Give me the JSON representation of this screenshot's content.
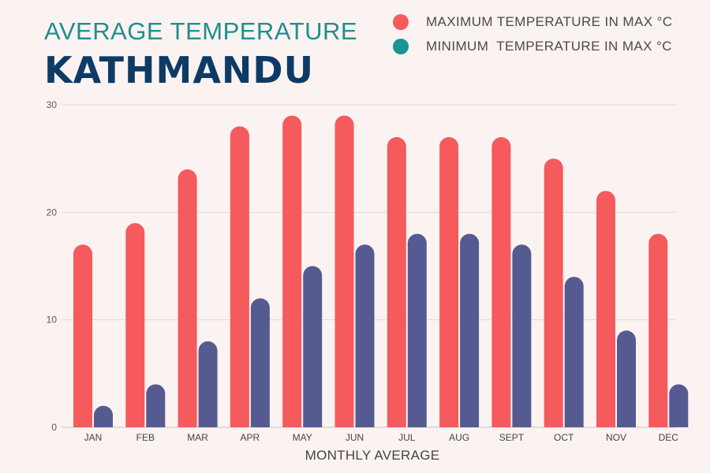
{
  "header": {
    "title": "AVERAGE TEMPERATURE",
    "subtitle": "KATHMANDU"
  },
  "colors": {
    "max": "#f55a5d",
    "min": "#555b91",
    "legend_min_dot": "#1a9494",
    "title": "#1f8f8f",
    "subtitle": "#0e3b66"
  },
  "chart_data": {
    "type": "bar",
    "categories": [
      "JAN",
      "FEB",
      "MAR",
      "APR",
      "MAY",
      "JUN",
      "JUL",
      "AUG",
      "SEPT",
      "OCT",
      "NOV",
      "DEC"
    ],
    "series": [
      {
        "name": "MAXIMUM TEMPERATURE IN MAX °C",
        "values": [
          17,
          19,
          24,
          28,
          29,
          29,
          27,
          27,
          27,
          25,
          22,
          18
        ]
      },
      {
        "name": "MINIMUM  TEMPERATURE IN MAX °C",
        "values": [
          2,
          4,
          8,
          12,
          15,
          17,
          18,
          18,
          17,
          14,
          9,
          4
        ]
      }
    ],
    "xlabel": "MONTHLY AVERAGE",
    "ylabel": "",
    "ylim": [
      0,
      30
    ],
    "yticks": [
      "0",
      "10",
      "20",
      "30"
    ],
    "grid": true,
    "legend_position": "top-right"
  }
}
